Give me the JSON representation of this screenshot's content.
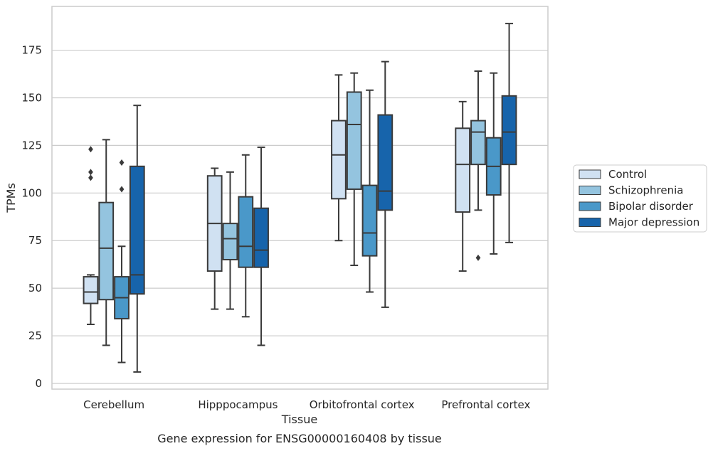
{
  "caption": "Gene expression for ENSG00000160408 by tissue",
  "chart_data": {
    "type": "box",
    "xlabel": "Tissue",
    "ylabel": "TPMs",
    "ylim": [
      -3,
      198
    ],
    "yticks": [
      0,
      25,
      50,
      75,
      100,
      125,
      150,
      175
    ],
    "grid": "horizontal",
    "legend_position": "right",
    "categories": [
      "Cerebellum",
      "Hipppocampus",
      "Orbitofrontal cortex",
      "Prefrontal cortex"
    ],
    "series": [
      {
        "name": "Control",
        "color": "#d0e1f2",
        "boxes": [
          {
            "whislo": 31,
            "q1": 42,
            "med": 48,
            "q3": 56,
            "whishi": 57,
            "fliers": [
              123,
              111,
              108
            ]
          },
          {
            "whislo": 39,
            "q1": 59,
            "med": 84,
            "q3": 109,
            "whishi": 113,
            "fliers": []
          },
          {
            "whislo": 75,
            "q1": 97,
            "med": 120,
            "q3": 138,
            "whishi": 162,
            "fliers": []
          },
          {
            "whislo": 59,
            "q1": 90,
            "med": 115,
            "q3": 134,
            "whishi": 148,
            "fliers": []
          }
        ]
      },
      {
        "name": "Schizophrenia",
        "color": "#94c4df",
        "boxes": [
          {
            "whislo": 20,
            "q1": 44,
            "med": 71,
            "q3": 95,
            "whishi": 128,
            "fliers": []
          },
          {
            "whislo": 39,
            "q1": 65,
            "med": 76,
            "q3": 84,
            "whishi": 111,
            "fliers": []
          },
          {
            "whislo": 62,
            "q1": 102,
            "med": 136,
            "q3": 153,
            "whishi": 163,
            "fliers": []
          },
          {
            "whislo": 91,
            "q1": 115,
            "med": 132,
            "q3": 138,
            "whishi": 164,
            "fliers": [
              66
            ]
          }
        ]
      },
      {
        "name": "Bipolar disorder",
        "color": "#4a98c9",
        "boxes": [
          {
            "whislo": 11,
            "q1": 34,
            "med": 45,
            "q3": 56,
            "whishi": 72,
            "fliers": [
              116,
              102
            ]
          },
          {
            "whislo": 35,
            "q1": 61,
            "med": 72,
            "q3": 98,
            "whishi": 120,
            "fliers": []
          },
          {
            "whislo": 48,
            "q1": 67,
            "med": 79,
            "q3": 104,
            "whishi": 154,
            "fliers": []
          },
          {
            "whislo": 68,
            "q1": 99,
            "med": 114,
            "q3": 129,
            "whishi": 163,
            "fliers": []
          }
        ]
      },
      {
        "name": "Major depression",
        "color": "#1764ab",
        "boxes": [
          {
            "whislo": 6,
            "q1": 47,
            "med": 57,
            "q3": 114,
            "whishi": 146,
            "fliers": []
          },
          {
            "whislo": 20,
            "q1": 61,
            "med": 70,
            "q3": 92,
            "whishi": 124,
            "fliers": []
          },
          {
            "whislo": 40,
            "q1": 91,
            "med": 101,
            "q3": 141,
            "whishi": 169,
            "fliers": []
          },
          {
            "whislo": 74,
            "q1": 115,
            "med": 132,
            "q3": 151,
            "whishi": 189,
            "fliers": []
          }
        ]
      }
    ]
  }
}
